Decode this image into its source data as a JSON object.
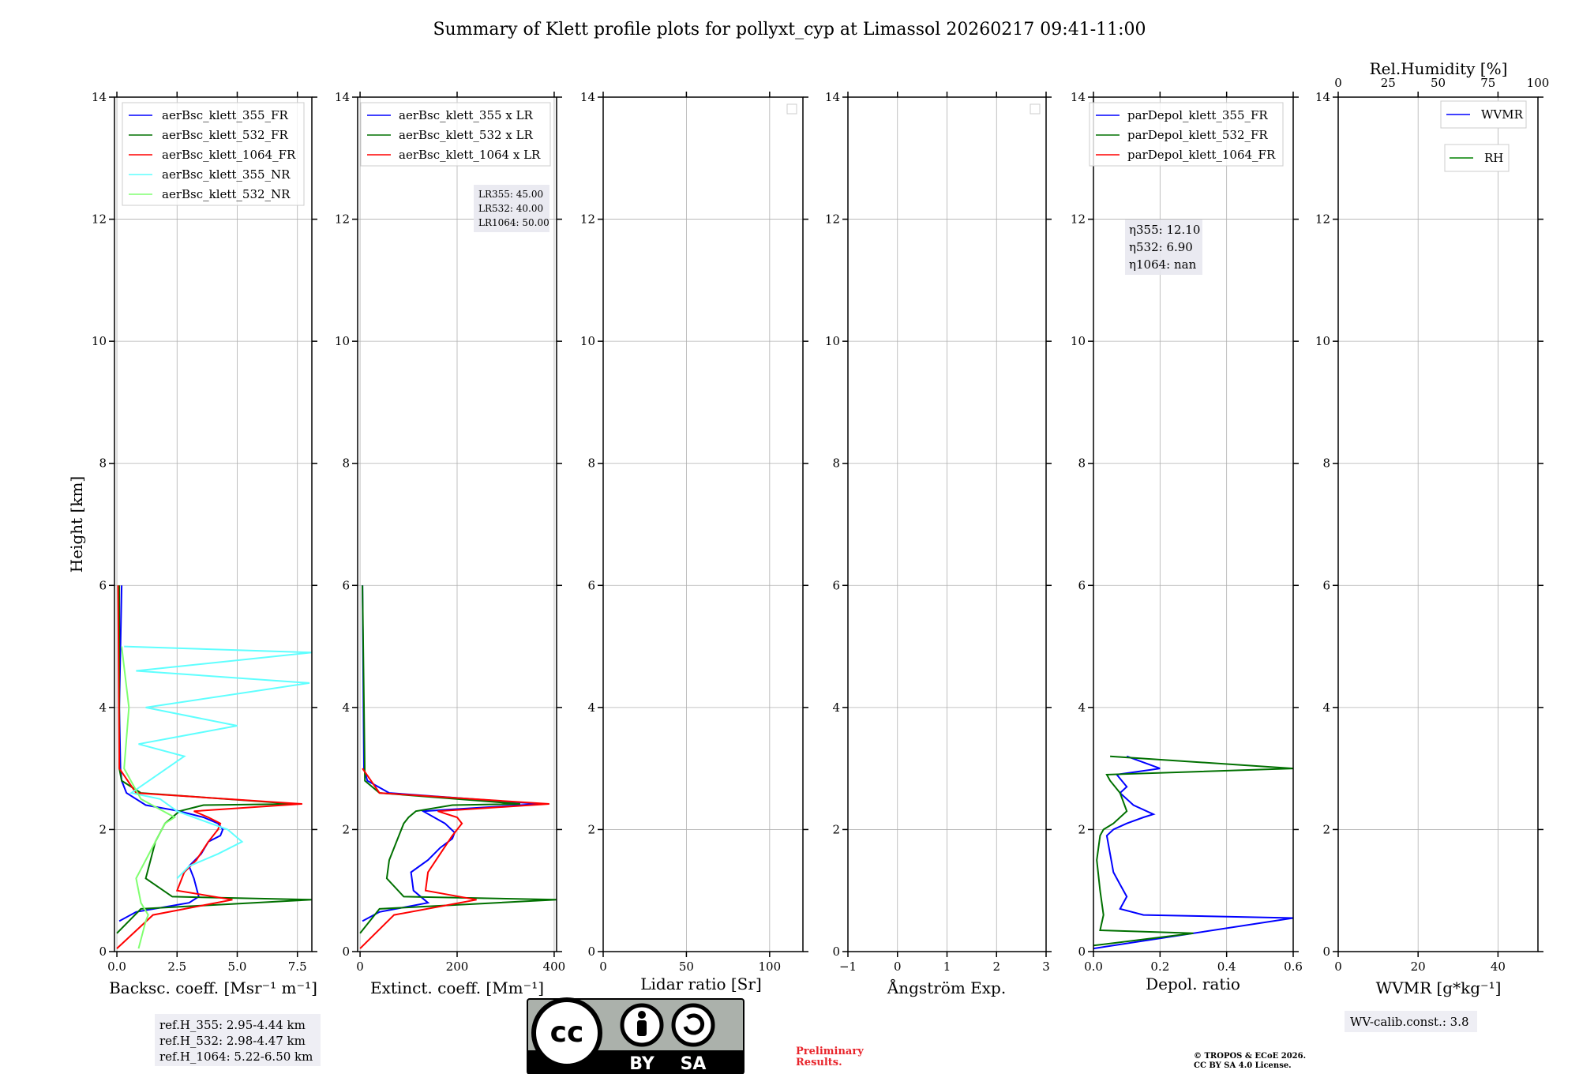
{
  "title": "Summary of Klett profile plots for pollyxt_cyp at Limassol 20260217 09:41-11:00",
  "ylabel": "Height [km]",
  "yticks": [
    "0",
    "2",
    "4",
    "6",
    "8",
    "10",
    "12",
    "14"
  ],
  "colors": {
    "c355": "#0000ff",
    "c532": "#007000",
    "c1064": "#ff0000",
    "c355nr": "#5fffff",
    "c532nr": "#80ff70",
    "wvmr": "#0000ff",
    "rh": "#008000"
  },
  "panels": {
    "bsc": {
      "xlabel": "Backsc. coeff. [Msr⁻¹ m⁻¹]",
      "xticks": [
        "0.0",
        "2.5",
        "5.0",
        "7.5"
      ],
      "legend": [
        "aerBsc_klett_355_FR",
        "aerBsc_klett_532_FR",
        "aerBsc_klett_1064_FR",
        "aerBsc_klett_355_NR",
        "aerBsc_klett_532_NR"
      ],
      "refbox": [
        "ref.H_355: 2.95-4.44 km",
        "ref.H_532: 2.98-4.47 km",
        "ref.H_1064: 5.22-6.50 km"
      ]
    },
    "ext": {
      "xlabel": "Extinct. coeff. [Mm⁻¹]",
      "xticks": [
        "0",
        "200",
        "400"
      ],
      "legend": [
        "aerBsc_klett_355 x LR",
        "aerBsc_klett_532 x LR",
        "aerBsc_klett_1064 x LR"
      ],
      "lrbox": [
        "LR355: 45.00",
        "LR532: 40.00",
        "LR1064: 50.00"
      ]
    },
    "lr": {
      "xlabel": "Lidar ratio [Sr]",
      "xticks": [
        "0",
        "50",
        "100"
      ]
    },
    "ang": {
      "xlabel": "Ångström Exp.",
      "xticks": [
        "−1",
        "0",
        "1",
        "2",
        "3"
      ]
    },
    "dep": {
      "xlabel": "Depol. ratio",
      "xticks": [
        "0.0",
        "0.2",
        "0.4",
        "0.6"
      ],
      "legend": [
        "parDepol_klett_355_FR",
        "parDepol_klett_532_FR",
        "parDepol_klett_1064_FR"
      ],
      "etabox": [
        "η355: 12.10",
        "η532: 6.90",
        "η1064: nan"
      ]
    },
    "wv": {
      "xlabel": "WVMR [g*kg⁻¹]",
      "xticks": [
        "0",
        "20",
        "40"
      ],
      "top_label": "Rel.Humidity [%]",
      "top_ticks": [
        "0",
        "25",
        "50",
        "75",
        "100"
      ],
      "legend": [
        "WVMR",
        "RH"
      ],
      "calib": "WV-calib.const.: 3.8"
    }
  },
  "footer": {
    "license_badge": [
      "cc",
      "BY",
      "SA"
    ],
    "preliminary": [
      "Preliminary",
      "Results."
    ],
    "copyright": [
      "© TROPOS & ECoE 2026.",
      "CC BY SA 4.0 License."
    ]
  },
  "chart_data": [
    {
      "type": "line",
      "name": "Backscatter coefficient",
      "xlabel": "Backsc. coeff. [Msr⁻¹ m⁻¹]",
      "ylabel": "Height [km]",
      "xlim": [
        -0.1,
        8.1
      ],
      "ylim": [
        0,
        14
      ],
      "series": [
        {
          "name": "aerBsc_klett_355_FR",
          "x": [
            0.1,
            0.8,
            3.0,
            3.4,
            3.2,
            3.0,
            3.5,
            3.8,
            4.3,
            4.4,
            4.2,
            3.6,
            2.6,
            1.2,
            0.4,
            0.2,
            0.15,
            0.1,
            0.2
          ],
          "y": [
            0.5,
            0.65,
            0.8,
            0.9,
            1.2,
            1.4,
            1.6,
            1.8,
            1.9,
            2.0,
            2.1,
            2.2,
            2.3,
            2.4,
            2.6,
            2.8,
            3.0,
            4.0,
            6.0
          ]
        },
        {
          "name": "aerBsc_klett_532_FR",
          "x": [
            0.0,
            1.0,
            8.1,
            2.3,
            1.2,
            1.4,
            1.6,
            2.0,
            2.3,
            2.6,
            3.6,
            7.4,
            1.0,
            0.2,
            0.1,
            0.1
          ],
          "y": [
            0.3,
            0.7,
            0.85,
            0.9,
            1.2,
            1.5,
            1.8,
            2.1,
            2.2,
            2.3,
            2.4,
            2.42,
            2.6,
            2.8,
            3.0,
            6.0
          ]
        },
        {
          "name": "aerBsc_klett_1064_FR",
          "x": [
            0.0,
            1.5,
            4.8,
            2.5,
            2.8,
            3.3,
            3.8,
            4.2,
            4.3,
            3.8,
            3.2,
            7.7,
            0.8,
            0.1,
            0.05
          ],
          "y": [
            0.05,
            0.6,
            0.85,
            1.0,
            1.3,
            1.5,
            1.8,
            2.0,
            2.1,
            2.2,
            2.3,
            2.42,
            2.6,
            3.0,
            6.0
          ]
        },
        {
          "name": "aerBsc_klett_355_NR",
          "x": [
            2.5,
            3.0,
            4.2,
            5.2,
            4.6,
            3.2,
            2.5,
            1.8,
            0.6,
            2.8,
            0.9,
            5.0,
            1.2,
            8.0,
            0.8,
            8.1,
            0.3
          ],
          "y": [
            1.2,
            1.4,
            1.6,
            1.8,
            2.0,
            2.2,
            2.3,
            2.5,
            2.6,
            3.2,
            3.4,
            3.7,
            4.0,
            4.4,
            4.6,
            4.9,
            5.0
          ]
        },
        {
          "name": "aerBsc_klett_532_NR",
          "x": [
            0.9,
            1.2,
            1.3,
            1.0,
            0.8,
            1.2,
            1.6,
            2.0,
            2.4,
            1.0,
            0.3,
            0.5,
            0.2
          ],
          "y": [
            0.05,
            0.5,
            0.6,
            0.8,
            1.2,
            1.5,
            1.8,
            2.1,
            2.2,
            2.5,
            3.0,
            4.0,
            5.0
          ]
        }
      ]
    },
    {
      "type": "line",
      "name": "Extinction coefficient",
      "xlabel": "Extinct. coeff. [Mm⁻¹]",
      "ylabel": "Height [km]",
      "xlim": [
        -5,
        405
      ],
      "ylim": [
        0,
        14
      ],
      "lidar_ratios": {
        "LR355": 45.0,
        "LR532": 40.0,
        "LR1064": 50.0
      },
      "series": [
        {
          "name": "aerBsc_klett_355 x LR",
          "x": [
            5,
            40,
            140,
            110,
            105,
            140,
            165,
            190,
            195,
            175,
            130,
            370,
            60,
            15,
            8,
            5
          ],
          "y": [
            0.5,
            0.65,
            0.8,
            1.0,
            1.3,
            1.5,
            1.7,
            1.85,
            1.95,
            2.1,
            2.3,
            2.42,
            2.6,
            2.8,
            3.0,
            6.0
          ]
        },
        {
          "name": "aerBsc_klett_532 x LR",
          "x": [
            0,
            40,
            405,
            90,
            55,
            60,
            75,
            90,
            100,
            115,
            190,
            330,
            40,
            10,
            5
          ],
          "y": [
            0.3,
            0.7,
            0.85,
            0.9,
            1.2,
            1.5,
            1.8,
            2.1,
            2.2,
            2.3,
            2.4,
            2.42,
            2.6,
            2.8,
            6.0
          ]
        },
        {
          "name": "aerBsc_klett_1064 x LR",
          "x": [
            0,
            70,
            240,
            135,
            140,
            165,
            190,
            210,
            200,
            160,
            390,
            40,
            5
          ],
          "y": [
            0.05,
            0.6,
            0.85,
            1.0,
            1.3,
            1.6,
            1.9,
            2.1,
            2.2,
            2.3,
            2.42,
            2.6,
            3.0
          ]
        }
      ]
    },
    {
      "type": "line",
      "name": "Lidar ratio",
      "xlabel": "Lidar ratio [Sr]",
      "xlim": [
        0,
        120
      ],
      "ylim": [
        0,
        14
      ],
      "series": []
    },
    {
      "type": "line",
      "name": "Angstrom exponent",
      "xlabel": "Ångström Exp.",
      "xlim": [
        -1,
        3
      ],
      "ylim": [
        0,
        14
      ],
      "series": []
    },
    {
      "type": "line",
      "name": "Particle depolarization ratio",
      "xlabel": "Depol. ratio",
      "ylabel": "Height [km]",
      "xlim": [
        0,
        0.6
      ],
      "ylim": [
        0,
        14
      ],
      "depol_calib": {
        "eta355": 12.1,
        "eta532": 6.9,
        "eta1064": "nan"
      },
      "series": [
        {
          "name": "parDepol_klett_355_FR",
          "x": [
            0.0,
            0.6,
            0.15,
            0.08,
            0.1,
            0.08,
            0.06,
            0.05,
            0.04,
            0.06,
            0.1,
            0.15,
            0.18,
            0.12,
            0.08,
            0.1,
            0.07,
            0.2,
            0.1
          ],
          "y": [
            0.05,
            0.55,
            0.6,
            0.7,
            0.9,
            1.1,
            1.3,
            1.6,
            1.9,
            2.0,
            2.1,
            2.2,
            2.25,
            2.4,
            2.6,
            2.7,
            2.9,
            3.0,
            3.2
          ]
        },
        {
          "name": "parDepol_klett_532_FR",
          "x": [
            0.0,
            0.3,
            0.02,
            0.03,
            0.02,
            0.01,
            0.02,
            0.03,
            0.06,
            0.1,
            0.08,
            0.05,
            0.04,
            0.6,
            0.05
          ],
          "y": [
            0.1,
            0.3,
            0.35,
            0.6,
            1.0,
            1.5,
            1.9,
            2.0,
            2.1,
            2.3,
            2.6,
            2.8,
            2.9,
            3.0,
            3.2
          ]
        }
      ]
    },
    {
      "type": "line",
      "name": "Water vapour mixing ratio",
      "xlabel": "WVMR [g*kg⁻¹]",
      "xlim": [
        0,
        50
      ],
      "ylim": [
        0,
        14
      ],
      "top_axis": {
        "label": "Rel.Humidity [%]",
        "range": [
          0,
          100
        ]
      },
      "series": [
        {
          "name": "WVMR",
          "x": [],
          "y": []
        },
        {
          "name": "RH",
          "x": [],
          "y": []
        }
      ]
    }
  ]
}
